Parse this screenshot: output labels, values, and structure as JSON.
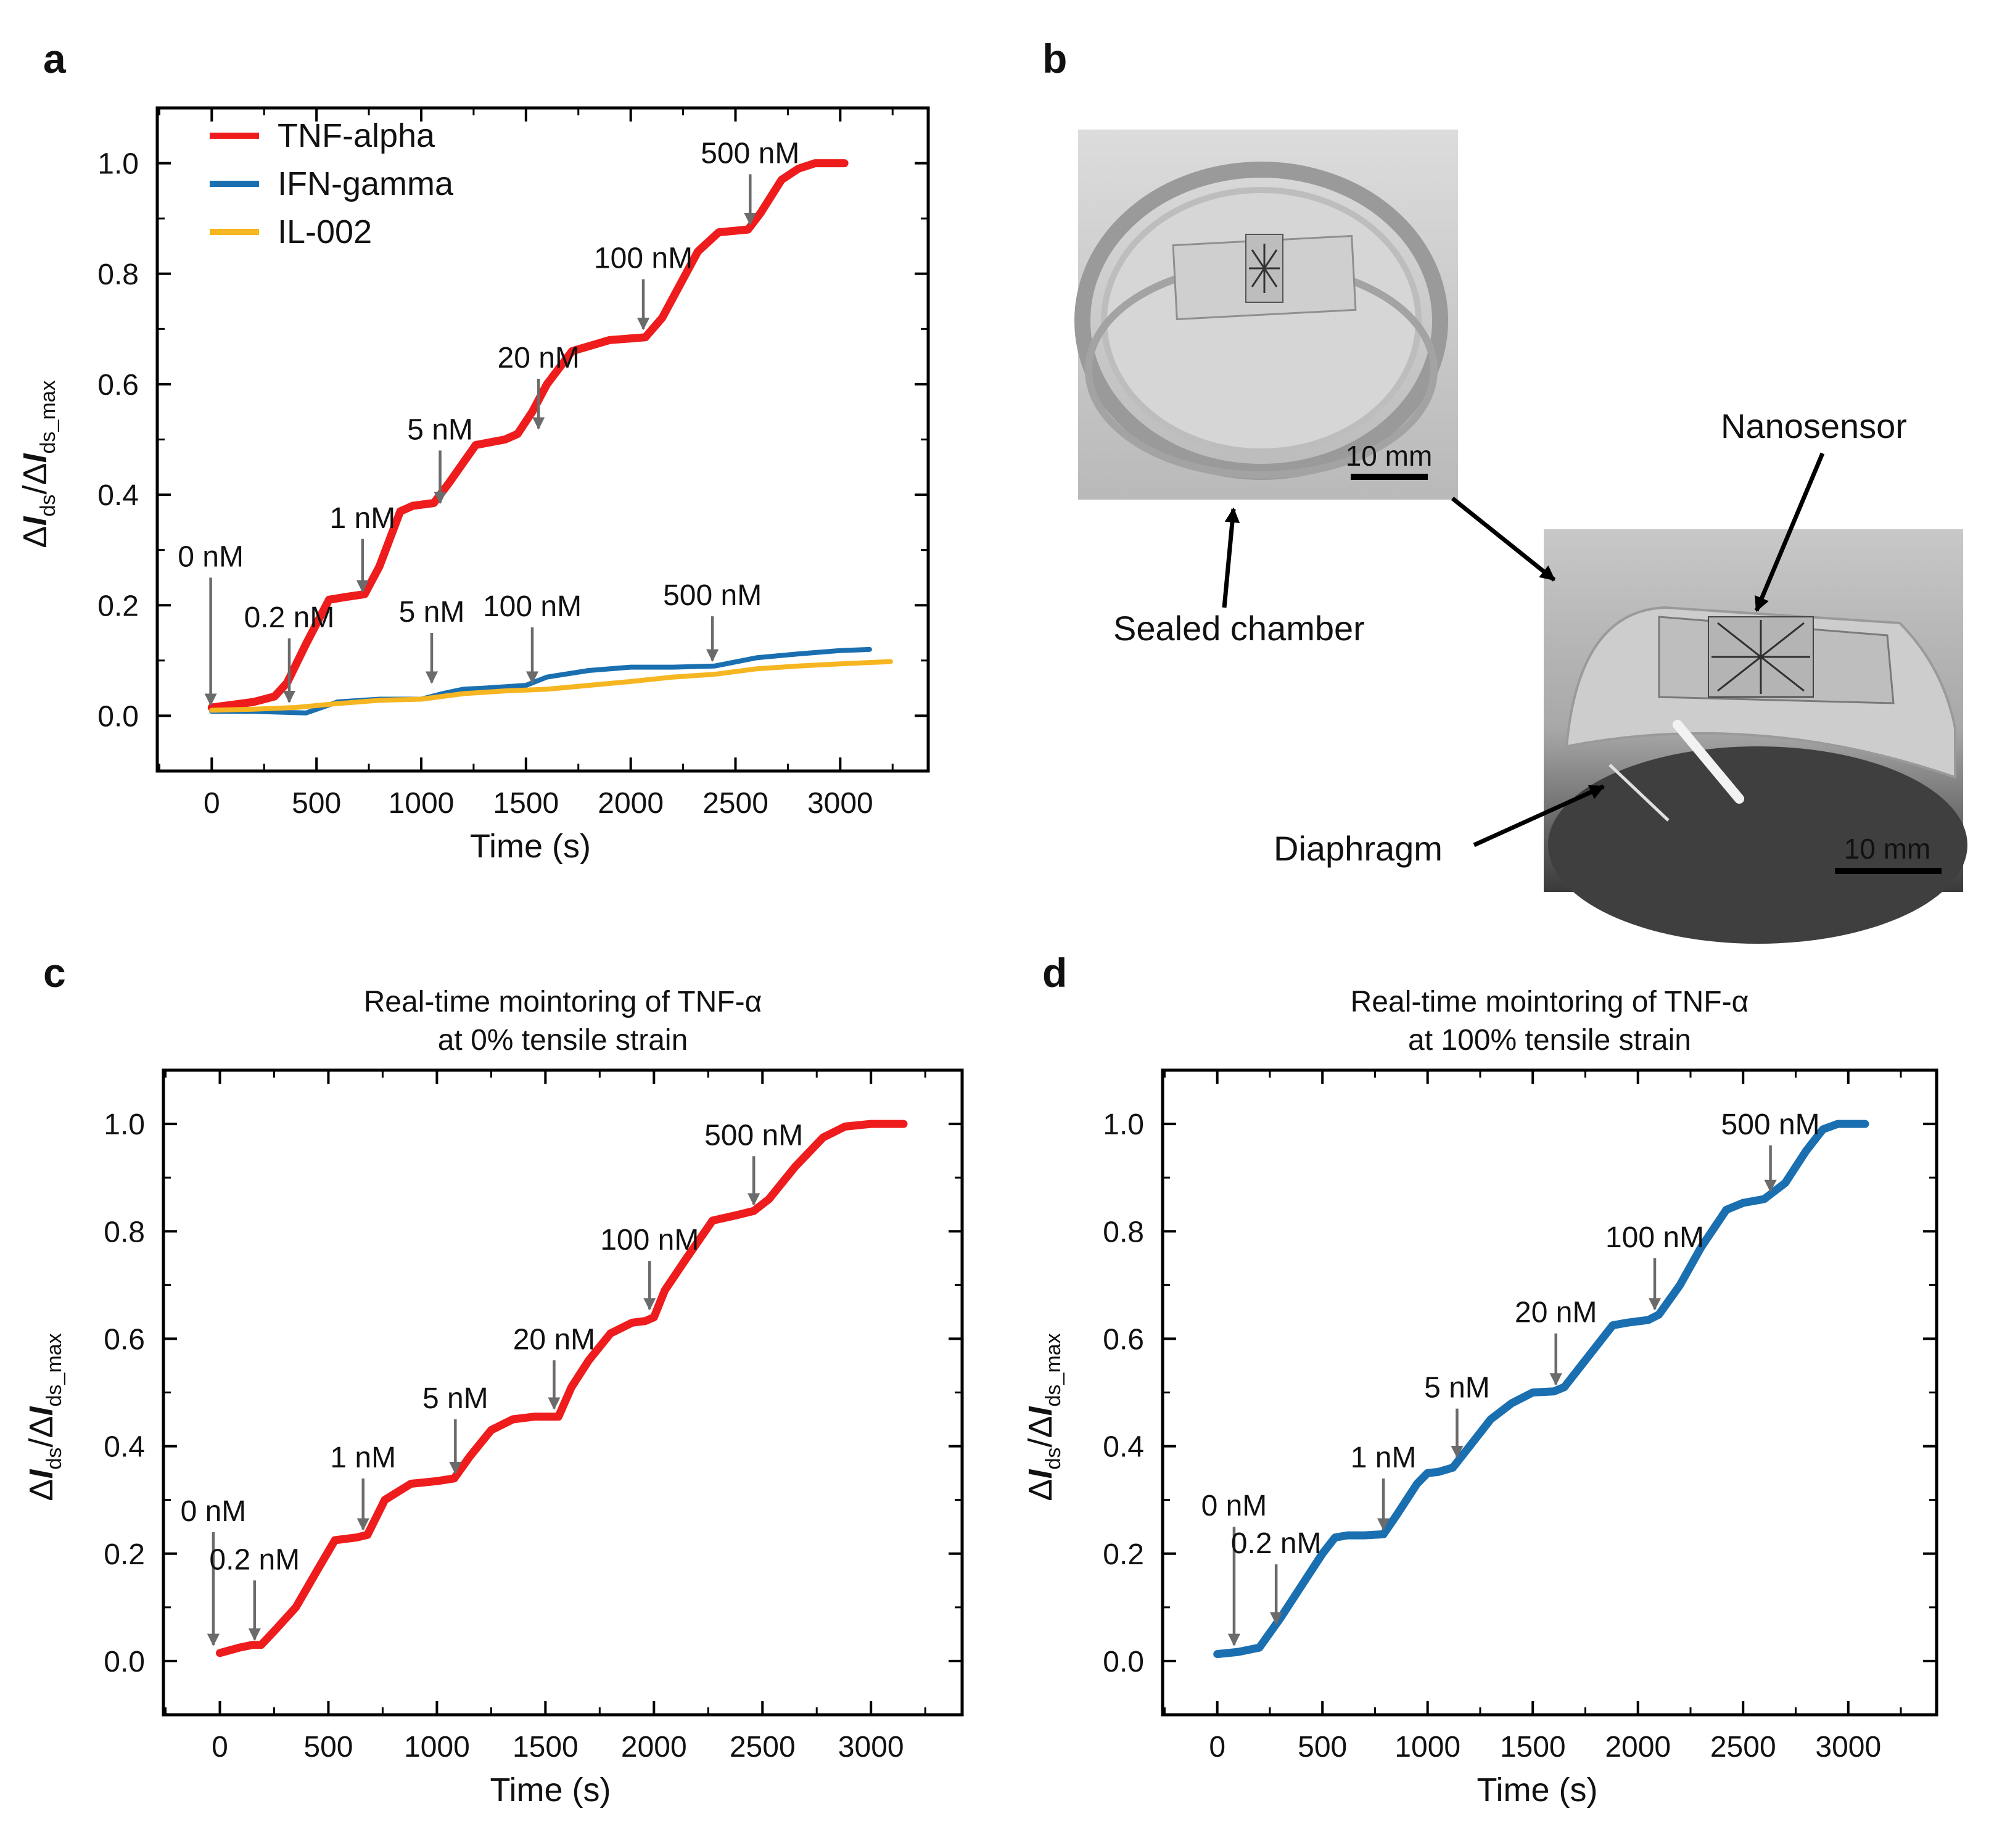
{
  "figure": {
    "panel_labels": [
      "a",
      "b",
      "c",
      "d"
    ],
    "axis_common": {
      "xlabel": "Time (s)",
      "ylabel_parts": [
        "Δ",
        "I",
        "ds",
        "/Δ",
        "I",
        "ds_max"
      ],
      "xticks": [
        0,
        500,
        1000,
        1500,
        2000,
        2500,
        3000
      ],
      "xtick_labels": [
        "0",
        "500",
        "1000",
        "1500",
        "2000",
        "2500",
        "3000"
      ],
      "yticks": [
        0.0,
        0.2,
        0.4,
        0.6,
        0.8,
        1.0
      ],
      "ytick_labels": [
        "0.0",
        "0.2",
        "0.4",
        "0.6",
        "0.8",
        "1.0"
      ]
    },
    "photo_panel": {
      "labels": {
        "sealed_chamber": "Sealed chamber",
        "nanosensor": "Nanosensor",
        "diaphragm": "Diaphragm",
        "scale_bar_top": "10 mm",
        "scale_bar_bottom": "10 mm"
      },
      "colors": {
        "photo_bg": "#cfcfcf",
        "photo_dark": "#555555"
      }
    }
  },
  "chart_data": [
    {
      "panel": "a",
      "type": "line",
      "title": "",
      "xlabel": "Time (s)",
      "ylabel": "ΔIds/ΔIds_max",
      "xlim": [
        -260,
        3420
      ],
      "ylim": [
        -0.1,
        1.1
      ],
      "legend_position": "top-left",
      "series": [
        {
          "name": "TNF-alpha",
          "color": "#ee1c1c",
          "x": [
            0,
            200,
            300,
            360,
            450,
            560,
            640,
            730,
            800,
            900,
            960,
            1060,
            1130,
            1260,
            1400,
            1460,
            1530,
            1600,
            1720,
            1900,
            2070,
            2150,
            2320,
            2420,
            2560,
            2620,
            2720,
            2800,
            2880,
            3020
          ],
          "y": [
            0.015,
            0.025,
            0.035,
            0.06,
            0.13,
            0.21,
            0.215,
            0.22,
            0.27,
            0.37,
            0.38,
            0.385,
            0.42,
            0.49,
            0.5,
            0.51,
            0.55,
            0.6,
            0.66,
            0.68,
            0.685,
            0.72,
            0.84,
            0.875,
            0.88,
            0.91,
            0.97,
            0.99,
            1.0,
            1.0
          ]
        },
        {
          "name": "IFN-gamma",
          "color": "#1a6fb0",
          "x": [
            0,
            200,
            450,
            600,
            800,
            1000,
            1100,
            1200,
            1300,
            1500,
            1600,
            1800,
            2000,
            2200,
            2400,
            2600,
            2800,
            3000,
            3140
          ],
          "y": [
            0.008,
            0.008,
            0.005,
            0.025,
            0.03,
            0.03,
            0.04,
            0.048,
            0.05,
            0.055,
            0.07,
            0.082,
            0.088,
            0.088,
            0.09,
            0.105,
            0.112,
            0.118,
            0.12
          ]
        },
        {
          "name": "IL-002",
          "color": "#f6b621",
          "x": [
            0,
            200,
            400,
            600,
            800,
            1000,
            1200,
            1400,
            1600,
            1800,
            2000,
            2200,
            2400,
            2600,
            2800,
            3000,
            3240
          ],
          "y": [
            0.01,
            0.012,
            0.015,
            0.022,
            0.028,
            0.03,
            0.04,
            0.045,
            0.048,
            0.055,
            0.062,
            0.07,
            0.075,
            0.085,
            0.09,
            0.094,
            0.098
          ]
        }
      ],
      "annotations": [
        {
          "label": "0 nM",
          "x": -5,
          "y_tip": 0.02,
          "y_tail": 0.25
        },
        {
          "label": "0.2 nM",
          "x": 370,
          "y_tip": 0.025,
          "y_tail": 0.14
        },
        {
          "label": "1 nM",
          "x": 720,
          "y_tip": 0.225,
          "y_tail": 0.32
        },
        {
          "label": "5 nM",
          "x": 1090,
          "y_tip": 0.385,
          "y_tail": 0.48
        },
        {
          "label": "20 nM",
          "x": 1560,
          "y_tip": 0.52,
          "y_tail": 0.61
        },
        {
          "label": "100 nM",
          "x": 2060,
          "y_tip": 0.7,
          "y_tail": 0.79
        },
        {
          "label": "500 nM",
          "x": 2570,
          "y_tip": 0.89,
          "y_tail": 0.98
        },
        {
          "label": "5 nM",
          "x": 1050,
          "y_tip": 0.06,
          "y_tail": 0.15
        },
        {
          "label": "100 nM",
          "x": 1530,
          "y_tip": 0.06,
          "y_tail": 0.16
        },
        {
          "label": "500 nM",
          "x": 2390,
          "y_tip": 0.1,
          "y_tail": 0.18
        }
      ]
    },
    {
      "panel": "c",
      "type": "line",
      "title": "Real-time mointoring of TNF-α at 0% tensile strain",
      "title_lines": [
        "Real-time mointoring of TNF-α",
        "at 0% tensile strain"
      ],
      "xlabel": "Time (s)",
      "ylabel": "ΔIds/ΔIds_max",
      "xlim": [
        -260,
        3420
      ],
      "ylim": [
        -0.1,
        1.1
      ],
      "series": [
        {
          "name": "TNF-alpha (0% strain)",
          "color": "#ee1c1c",
          "x": [
            0,
            90,
            150,
            190,
            260,
            350,
            450,
            530,
            630,
            680,
            760,
            880,
            1000,
            1080,
            1150,
            1250,
            1350,
            1450,
            1560,
            1620,
            1700,
            1800,
            1900,
            1960,
            2000,
            2050,
            2150,
            2270,
            2380,
            2460,
            2530,
            2650,
            2780,
            2880,
            3000,
            3150
          ],
          "y": [
            0.015,
            0.025,
            0.03,
            0.03,
            0.06,
            0.1,
            0.17,
            0.225,
            0.23,
            0.235,
            0.3,
            0.33,
            0.335,
            0.34,
            0.38,
            0.43,
            0.45,
            0.455,
            0.455,
            0.51,
            0.56,
            0.61,
            0.63,
            0.633,
            0.64,
            0.69,
            0.75,
            0.82,
            0.83,
            0.838,
            0.86,
            0.92,
            0.975,
            0.995,
            1.0,
            1.0
          ]
        }
      ],
      "annotations": [
        {
          "label": "0 nM",
          "x": -30,
          "y_tip": 0.03,
          "y_tail": 0.24
        },
        {
          "label": "0.2 nM",
          "x": 160,
          "y_tip": 0.04,
          "y_tail": 0.15
        },
        {
          "label": "1 nM",
          "x": 660,
          "y_tip": 0.245,
          "y_tail": 0.34
        },
        {
          "label": "5 nM",
          "x": 1085,
          "y_tip": 0.35,
          "y_tail": 0.45
        },
        {
          "label": "20 nM",
          "x": 1540,
          "y_tip": 0.47,
          "y_tail": 0.56
        },
        {
          "label": "100 nM",
          "x": 1980,
          "y_tip": 0.655,
          "y_tail": 0.745
        },
        {
          "label": "500 nM",
          "x": 2460,
          "y_tip": 0.85,
          "y_tail": 0.94
        }
      ]
    },
    {
      "panel": "d",
      "type": "line",
      "title": "Real-time mointoring of TNF-α at 100% tensile strain",
      "title_lines": [
        "Real-time mointoring of TNF-α",
        "at 100% tensile strain"
      ],
      "xlabel": "Time (s)",
      "ylabel": "ΔIds/ΔIds_max",
      "xlim": [
        -260,
        3420
      ],
      "ylim": [
        -0.1,
        1.1
      ],
      "series": [
        {
          "name": "TNF-alpha (100% strain)",
          "color": "#1a6fb0",
          "x": [
            0,
            100,
            200,
            300,
            400,
            500,
            560,
            620,
            700,
            790,
            850,
            950,
            1000,
            1050,
            1120,
            1200,
            1300,
            1400,
            1500,
            1600,
            1650,
            1750,
            1880,
            1950,
            2050,
            2100,
            2200,
            2300,
            2420,
            2500,
            2600,
            2700,
            2800,
            2880,
            2950,
            3080
          ],
          "y": [
            0.013,
            0.017,
            0.025,
            0.08,
            0.14,
            0.2,
            0.23,
            0.234,
            0.234,
            0.236,
            0.27,
            0.33,
            0.35,
            0.352,
            0.36,
            0.4,
            0.45,
            0.48,
            0.5,
            0.502,
            0.51,
            0.56,
            0.625,
            0.63,
            0.635,
            0.645,
            0.7,
            0.77,
            0.84,
            0.853,
            0.86,
            0.89,
            0.95,
            0.99,
            1.0,
            1.0
          ]
        }
      ],
      "annotations": [
        {
          "label": "0 nM",
          "x": 80,
          "y_tip": 0.03,
          "y_tail": 0.25
        },
        {
          "label": "0.2 nM",
          "x": 280,
          "y_tip": 0.07,
          "y_tail": 0.18
        },
        {
          "label": "1 nM",
          "x": 790,
          "y_tip": 0.245,
          "y_tail": 0.34
        },
        {
          "label": "5 nM",
          "x": 1140,
          "y_tip": 0.38,
          "y_tail": 0.47
        },
        {
          "label": "20 nM",
          "x": 1610,
          "y_tip": 0.515,
          "y_tail": 0.61
        },
        {
          "label": "100 nM",
          "x": 2080,
          "y_tip": 0.655,
          "y_tail": 0.75
        },
        {
          "label": "500 nM",
          "x": 2630,
          "y_tip": 0.875,
          "y_tail": 0.96
        }
      ]
    }
  ]
}
